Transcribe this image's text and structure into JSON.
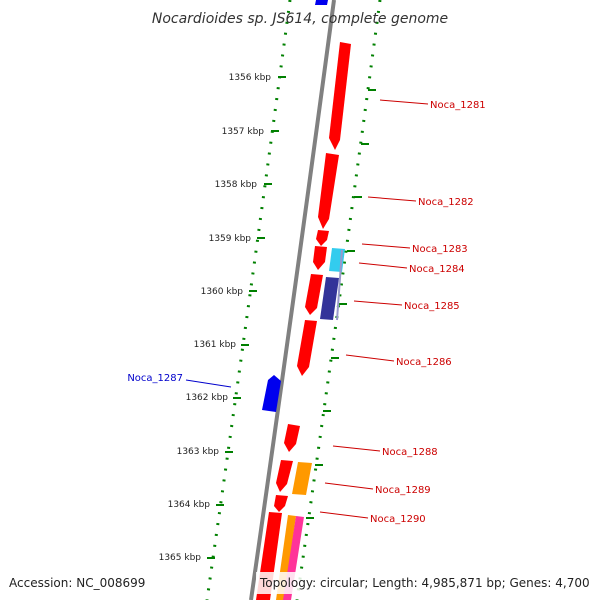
{
  "title": "Nocardioides sp. JS614, complete genome",
  "accession": "Accession: NC_008699",
  "topology": "Topology: circular; Length: 4,985,871 bp; Genes: 4,700",
  "colors": {
    "forward_gene": "#ff0000",
    "reverse_gene": "#0000ff",
    "backbone": "#808080",
    "dotted_ring": "#008000",
    "label_forward": "#cc0000",
    "label_reverse": "#0000cc",
    "feature_cyan": "#33ccee",
    "feature_navy": "#333399",
    "feature_orange": "#ff9900",
    "feature_magenta": "#ff3399"
  },
  "scale": {
    "labels": [
      "1356 kbp",
      "1357 kbp",
      "1358 kbp",
      "1359 kbp",
      "1360 kbp",
      "1361 kbp",
      "1362 kbp",
      "1363 kbp",
      "1364 kbp",
      "1365 kbp"
    ]
  },
  "gene_labels": [
    {
      "name": "Noca_1281",
      "strand": "forward"
    },
    {
      "name": "Noca_1282",
      "strand": "forward"
    },
    {
      "name": "Noca_1283",
      "strand": "forward"
    },
    {
      "name": "Noca_1284",
      "strand": "forward"
    },
    {
      "name": "Noca_1285",
      "strand": "forward"
    },
    {
      "name": "Noca_1286",
      "strand": "forward"
    },
    {
      "name": "Noca_1287",
      "strand": "reverse"
    },
    {
      "name": "Noca_1288",
      "strand": "forward"
    },
    {
      "name": "Noca_1289",
      "strand": "forward"
    },
    {
      "name": "Noca_1290",
      "strand": "forward"
    }
  ]
}
